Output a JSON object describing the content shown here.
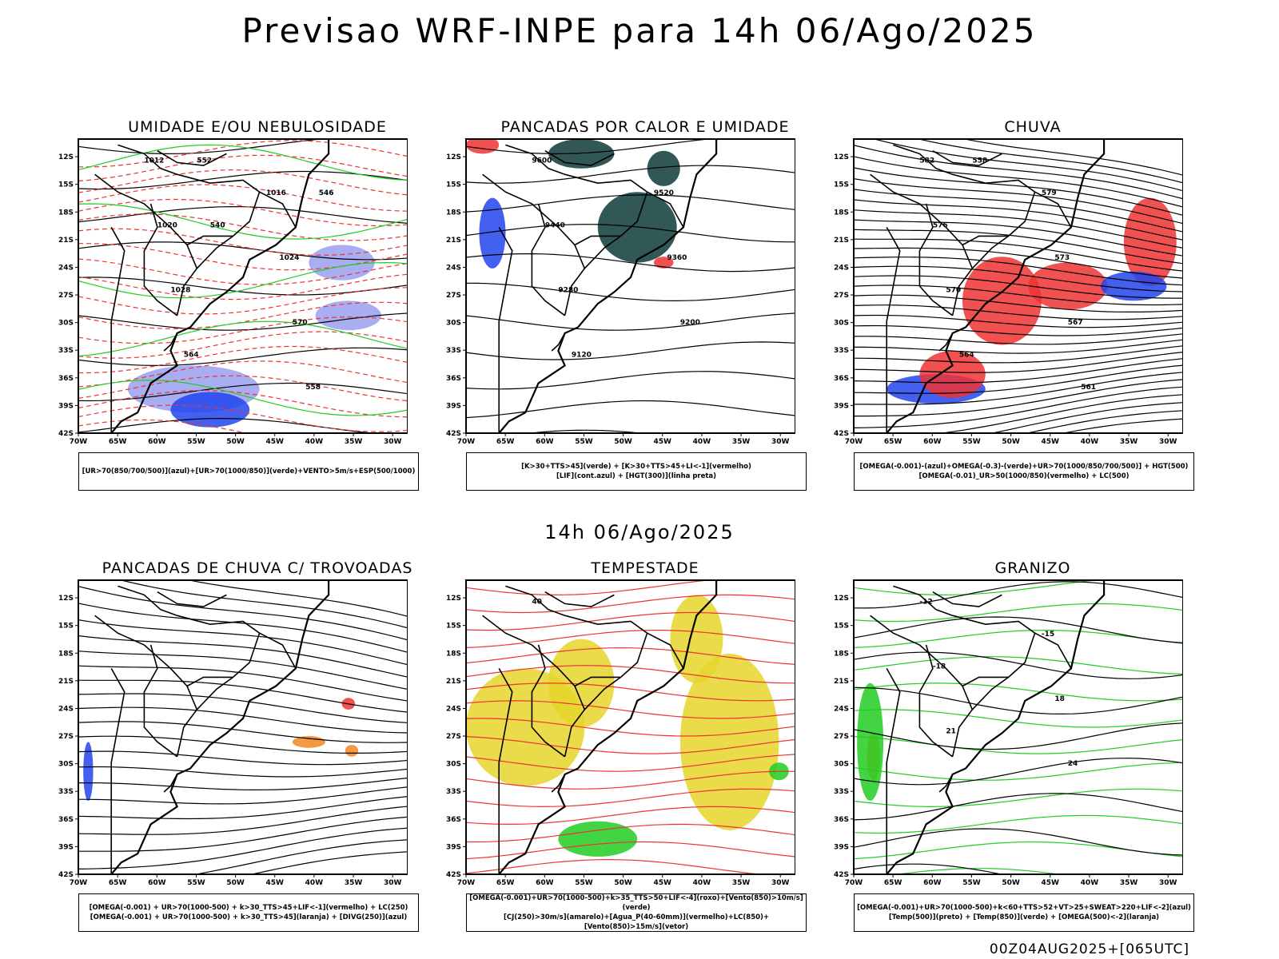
{
  "header": {
    "title": "Previsao WRF-INPE  para 14h 06/Ago/2025"
  },
  "mid_title": "14h 06/Ago/2025",
  "footer": "00Z04AUG2025+[065UTC]",
  "axes": {
    "lat_labels": [
      "12S",
      "15S",
      "18S",
      "21S",
      "24S",
      "27S",
      "30S",
      "33S",
      "36S",
      "39S",
      "42S"
    ],
    "lon_labels": [
      "70W",
      "65W",
      "60W",
      "55W",
      "50W",
      "45W",
      "40W",
      "35W",
      "30W"
    ]
  },
  "panels": [
    {
      "title": "UMIDADE E/OU NEBULOSIDADE",
      "legend": [
        "[UR>70(850/700/500)](azul)+[UR>70(1000/850)](verde)+VENTO>5m/s+ESP(500/1000)"
      ],
      "labels": [
        "1012",
        "1016",
        "1020",
        "1024",
        "1028",
        "570",
        "564",
        "558",
        "552",
        "546",
        "540"
      ]
    },
    {
      "title": "PANCADAS POR CALOR E UMIDADE",
      "legend": [
        "[K>30+TTS>45](verde) + [K>30+TTS>45+LI<-1](vermelho)",
        "[LIF](cont.azul) + [HGT(300)](linha preta)"
      ],
      "labels": [
        "9600",
        "9520",
        "9440",
        "9360",
        "9280",
        "9200",
        "9120"
      ]
    },
    {
      "title": "CHUVA",
      "legend": [
        "[OMEGA(-0.001)-(azul)+OMEGA(-0.3)-(verde)+UR>70(1000/850/700/500)] + HGT(500)",
        "[OMEGA(-0.01)_UR>50(1000/850)(vermelho) + LC(500)"
      ],
      "labels": [
        "582",
        "579",
        "576",
        "573",
        "570",
        "567",
        "564",
        "561",
        "558"
      ]
    },
    {
      "title": "PANCADAS DE CHUVA C/ TROVOADAS",
      "legend": [
        "[OMEGA(-0.001) + UR>70(1000-500) + k>30_TTS>45+LIF<-1](vermelho) + LC(250)",
        "[OMEGA(-0.001) + UR>70(1000-500) + k>30_TTS>45](laranja) + [DIVG(250)](azul)"
      ],
      "labels": []
    },
    {
      "title": "TEMPESTADE",
      "legend": [
        "[OMEGA(-0.001)+UR>70(1000-500)+k>35_TTS>50+LIF<-4](roxo)+[Vento(850)>10m/s](verde)",
        "[CJ(250)>30m/s](amarelo)+[Agua_P(40-60mm)](vermelho)+LC(850)+[Vento(850)>15m/s](vetor)"
      ],
      "labels": [
        "40"
      ]
    },
    {
      "title": "GRANIZO",
      "legend": [
        "[OMEGA(-0.001)+UR>70(1000-500)+k<60+TTS>52+VT>25+SWEAT>220+LIF<-2](azul)",
        "[Temp(500)](preto) + [Temp(850)](verde) + [OMEGA(500)<-2](laranja)"
      ],
      "labels": [
        "-12",
        "-15",
        "-18",
        "18",
        "21",
        "24"
      ]
    }
  ],
  "colors": {
    "black": "#000000",
    "red": "#ee3333",
    "green": "#22cc22",
    "blue": "#2244ee",
    "lightblue": "#9aa0f0",
    "darkgreen": "#0d3a38",
    "yellow": "#e6d52a",
    "orange": "#ee8822"
  }
}
